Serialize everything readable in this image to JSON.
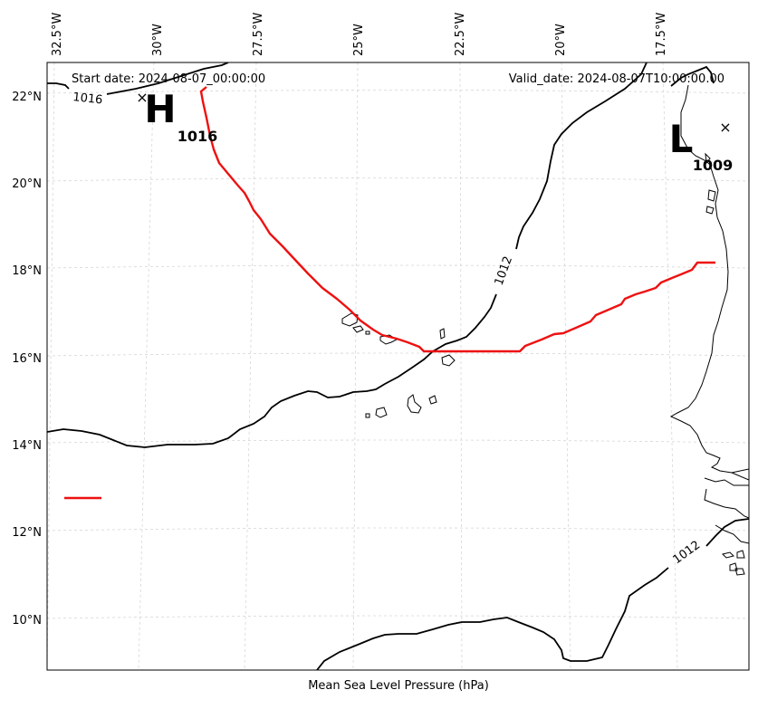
{
  "map": {
    "start_label": "Start date: 2024-08-07_00:00:00",
    "valid_label": "Valid_date: 2024-08-07T10:00:00.00",
    "xlabel": "Mean Sea Level Pressure (hPa)",
    "lon_labels": [
      "32.5°W",
      "30°W",
      "27.5°W",
      "25°W",
      "22.5°W",
      "20°W",
      "17.5°W"
    ],
    "lat_labels": [
      "22°N",
      "20°N",
      "18°N",
      "16°N",
      "14°N",
      "12°N",
      "10°N"
    ],
    "contour_labels": [
      "1016",
      "1012",
      "1012"
    ],
    "high": {
      "letter": "H",
      "value": "1016",
      "color": "#000000"
    },
    "low": {
      "letter": "L",
      "value": "1009",
      "color": "#000000"
    },
    "track_color": "#ee1111",
    "contour_color": "#000000"
  }
}
